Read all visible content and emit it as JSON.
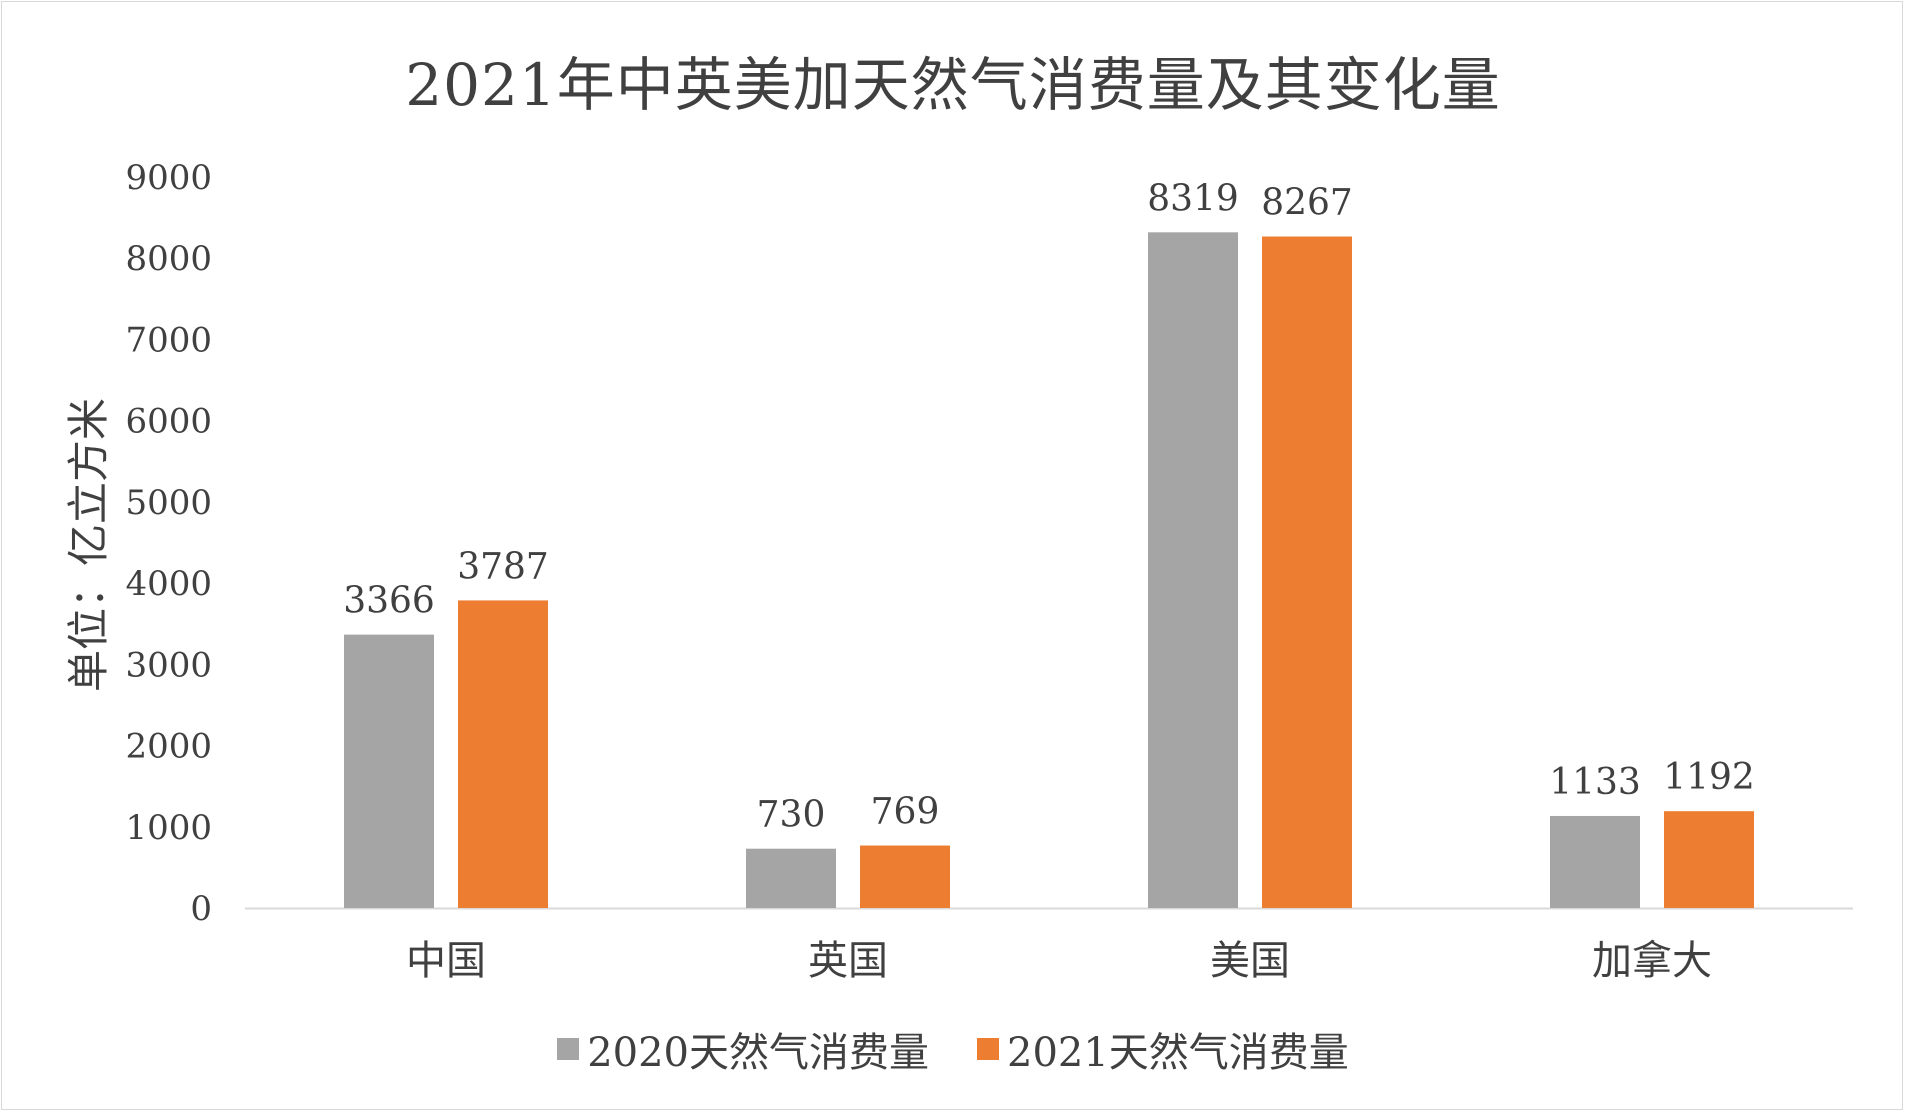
{
  "chart_data": {
    "type": "bar",
    "title": "2021年中英美加天然气消费量及其变化量",
    "ylabel": "单位：亿立方米",
    "xlabel": "",
    "ylim": [
      0,
      9000
    ],
    "yticks": [
      0,
      1000,
      2000,
      3000,
      4000,
      5000,
      6000,
      7000,
      8000,
      9000
    ],
    "grid": false,
    "legend_position": "bottom",
    "categories": [
      "中国",
      "英国",
      "美国",
      "加拿大"
    ],
    "series": [
      {
        "name": "2020天然气消费量",
        "color": "#a5a5a5",
        "values": [
          3366,
          730,
          8319,
          1133
        ]
      },
      {
        "name": "2021天然气消费量",
        "color": "#ed7d31",
        "values": [
          3787,
          769,
          8267,
          1192
        ]
      }
    ]
  }
}
